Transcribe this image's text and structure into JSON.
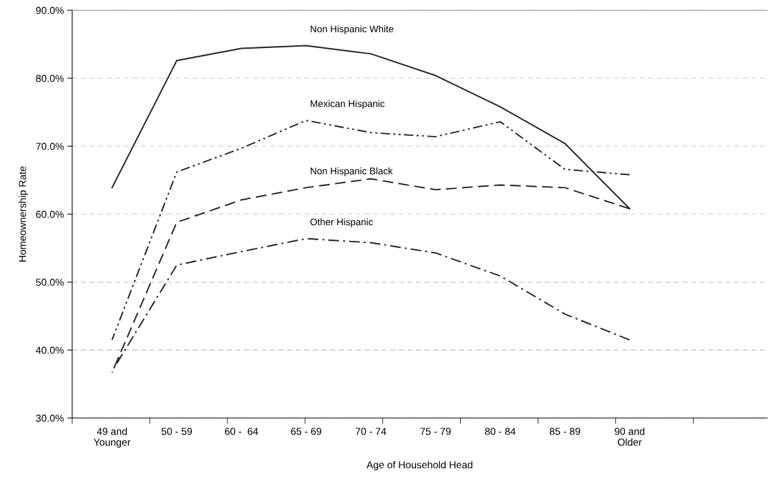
{
  "chart_data": {
    "type": "line",
    "xlabel": "Age of Household Head",
    "ylabel": "Homeownership Rate",
    "categories": [
      "49 and\nYounger",
      "50 - 59",
      "60 -  64",
      "65 - 69",
      "70 - 74",
      "75 - 79",
      "80 - 84",
      "85 - 89",
      "90 and\nOlder"
    ],
    "series": [
      {
        "name": "Non Hispanic White",
        "color": "#222222",
        "line_style": "solid",
        "values": [
          63.9,
          82.6,
          84.4,
          84.8,
          83.6,
          80.4,
          75.8,
          70.4,
          60.8
        ]
      },
      {
        "name": "Mexican Hispanic",
        "color": "#222222",
        "line_style": "dashdotdot",
        "values": [
          41.5,
          66.2,
          69.7,
          73.8,
          72.0,
          71.4,
          73.6,
          66.6,
          65.8
        ]
      },
      {
        "name": "Non Hispanic Black",
        "color": "#222222",
        "line_style": "dashed",
        "values": [
          36.7,
          58.8,
          62.1,
          63.9,
          65.2,
          63.6,
          64.3,
          63.9,
          60.8
        ]
      },
      {
        "name": "Other Hispanic",
        "color": "#222222",
        "line_style": "dashdot",
        "values": [
          36.9,
          52.5,
          54.5,
          56.4,
          55.8,
          54.3,
          50.9,
          45.3,
          41.5
        ]
      }
    ],
    "ylim": [
      30,
      90
    ],
    "yticks": [
      {
        "value": 30,
        "label": "30.0%"
      },
      {
        "value": 40,
        "label": "40.0%"
      },
      {
        "value": 50,
        "label": "50.0%"
      },
      {
        "value": 60,
        "label": "60.0%"
      },
      {
        "value": 70,
        "label": "70.0%"
      },
      {
        "value": 80,
        "label": "80.0%"
      },
      {
        "value": 90,
        "label": "90.0%"
      }
    ],
    "grid": "y",
    "legend": false,
    "marker": "none"
  }
}
